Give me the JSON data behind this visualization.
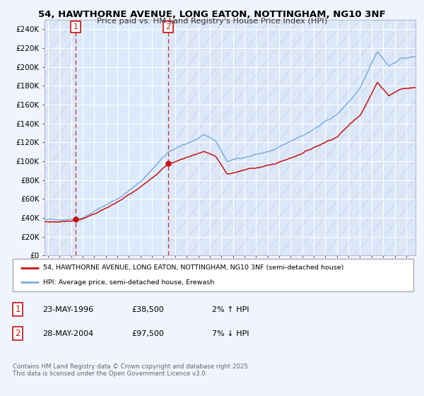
{
  "title_line1": "54, HAWTHORNE AVENUE, LONG EATON, NOTTINGHAM, NG10 3NF",
  "title_line2": "Price paid vs. HM Land Registry's House Price Index (HPI)",
  "ylim": [
    0,
    250000
  ],
  "yticks": [
    0,
    20000,
    40000,
    60000,
    80000,
    100000,
    120000,
    140000,
    160000,
    180000,
    200000,
    220000,
    240000
  ],
  "ytick_labels": [
    "£0",
    "£20K",
    "£40K",
    "£60K",
    "£80K",
    "£100K",
    "£120K",
    "£140K",
    "£160K",
    "£180K",
    "£200K",
    "£220K",
    "£240K"
  ],
  "fig_bg": "#f0f4fc",
  "plot_bg": "#dce8f8",
  "hatch_color": "#c0cce8",
  "grid_color": "#ffffff",
  "hpi_color": "#7aaadd",
  "price_color": "#cc1111",
  "shade_color": "#ddeeff",
  "sale1_year": 1996.39,
  "sale1_price": 38500,
  "sale2_year": 2004.41,
  "sale2_price": 97500,
  "legend_price_label": "54, HAWTHORNE AVENUE, LONG EATON, NOTTINGHAM, NG10 3NF (semi-detached house)",
  "legend_hpi_label": "HPI: Average price, semi-detached house, Erewash",
  "ann1_num": "1",
  "ann1_date": "23-MAY-1996",
  "ann1_price": "£38,500",
  "ann1_hpi": "2% ↑ HPI",
  "ann2_num": "2",
  "ann2_date": "28-MAY-2004",
  "ann2_price": "£97,500",
  "ann2_hpi": "7% ↓ HPI",
  "footnote": "Contains HM Land Registry data © Crown copyright and database right 2025.\nThis data is licensed under the Open Government Licence v3.0.",
  "xmin": 1993.7,
  "xmax": 2025.8,
  "x_tick_start": 1994,
  "x_tick_end": 2025
}
